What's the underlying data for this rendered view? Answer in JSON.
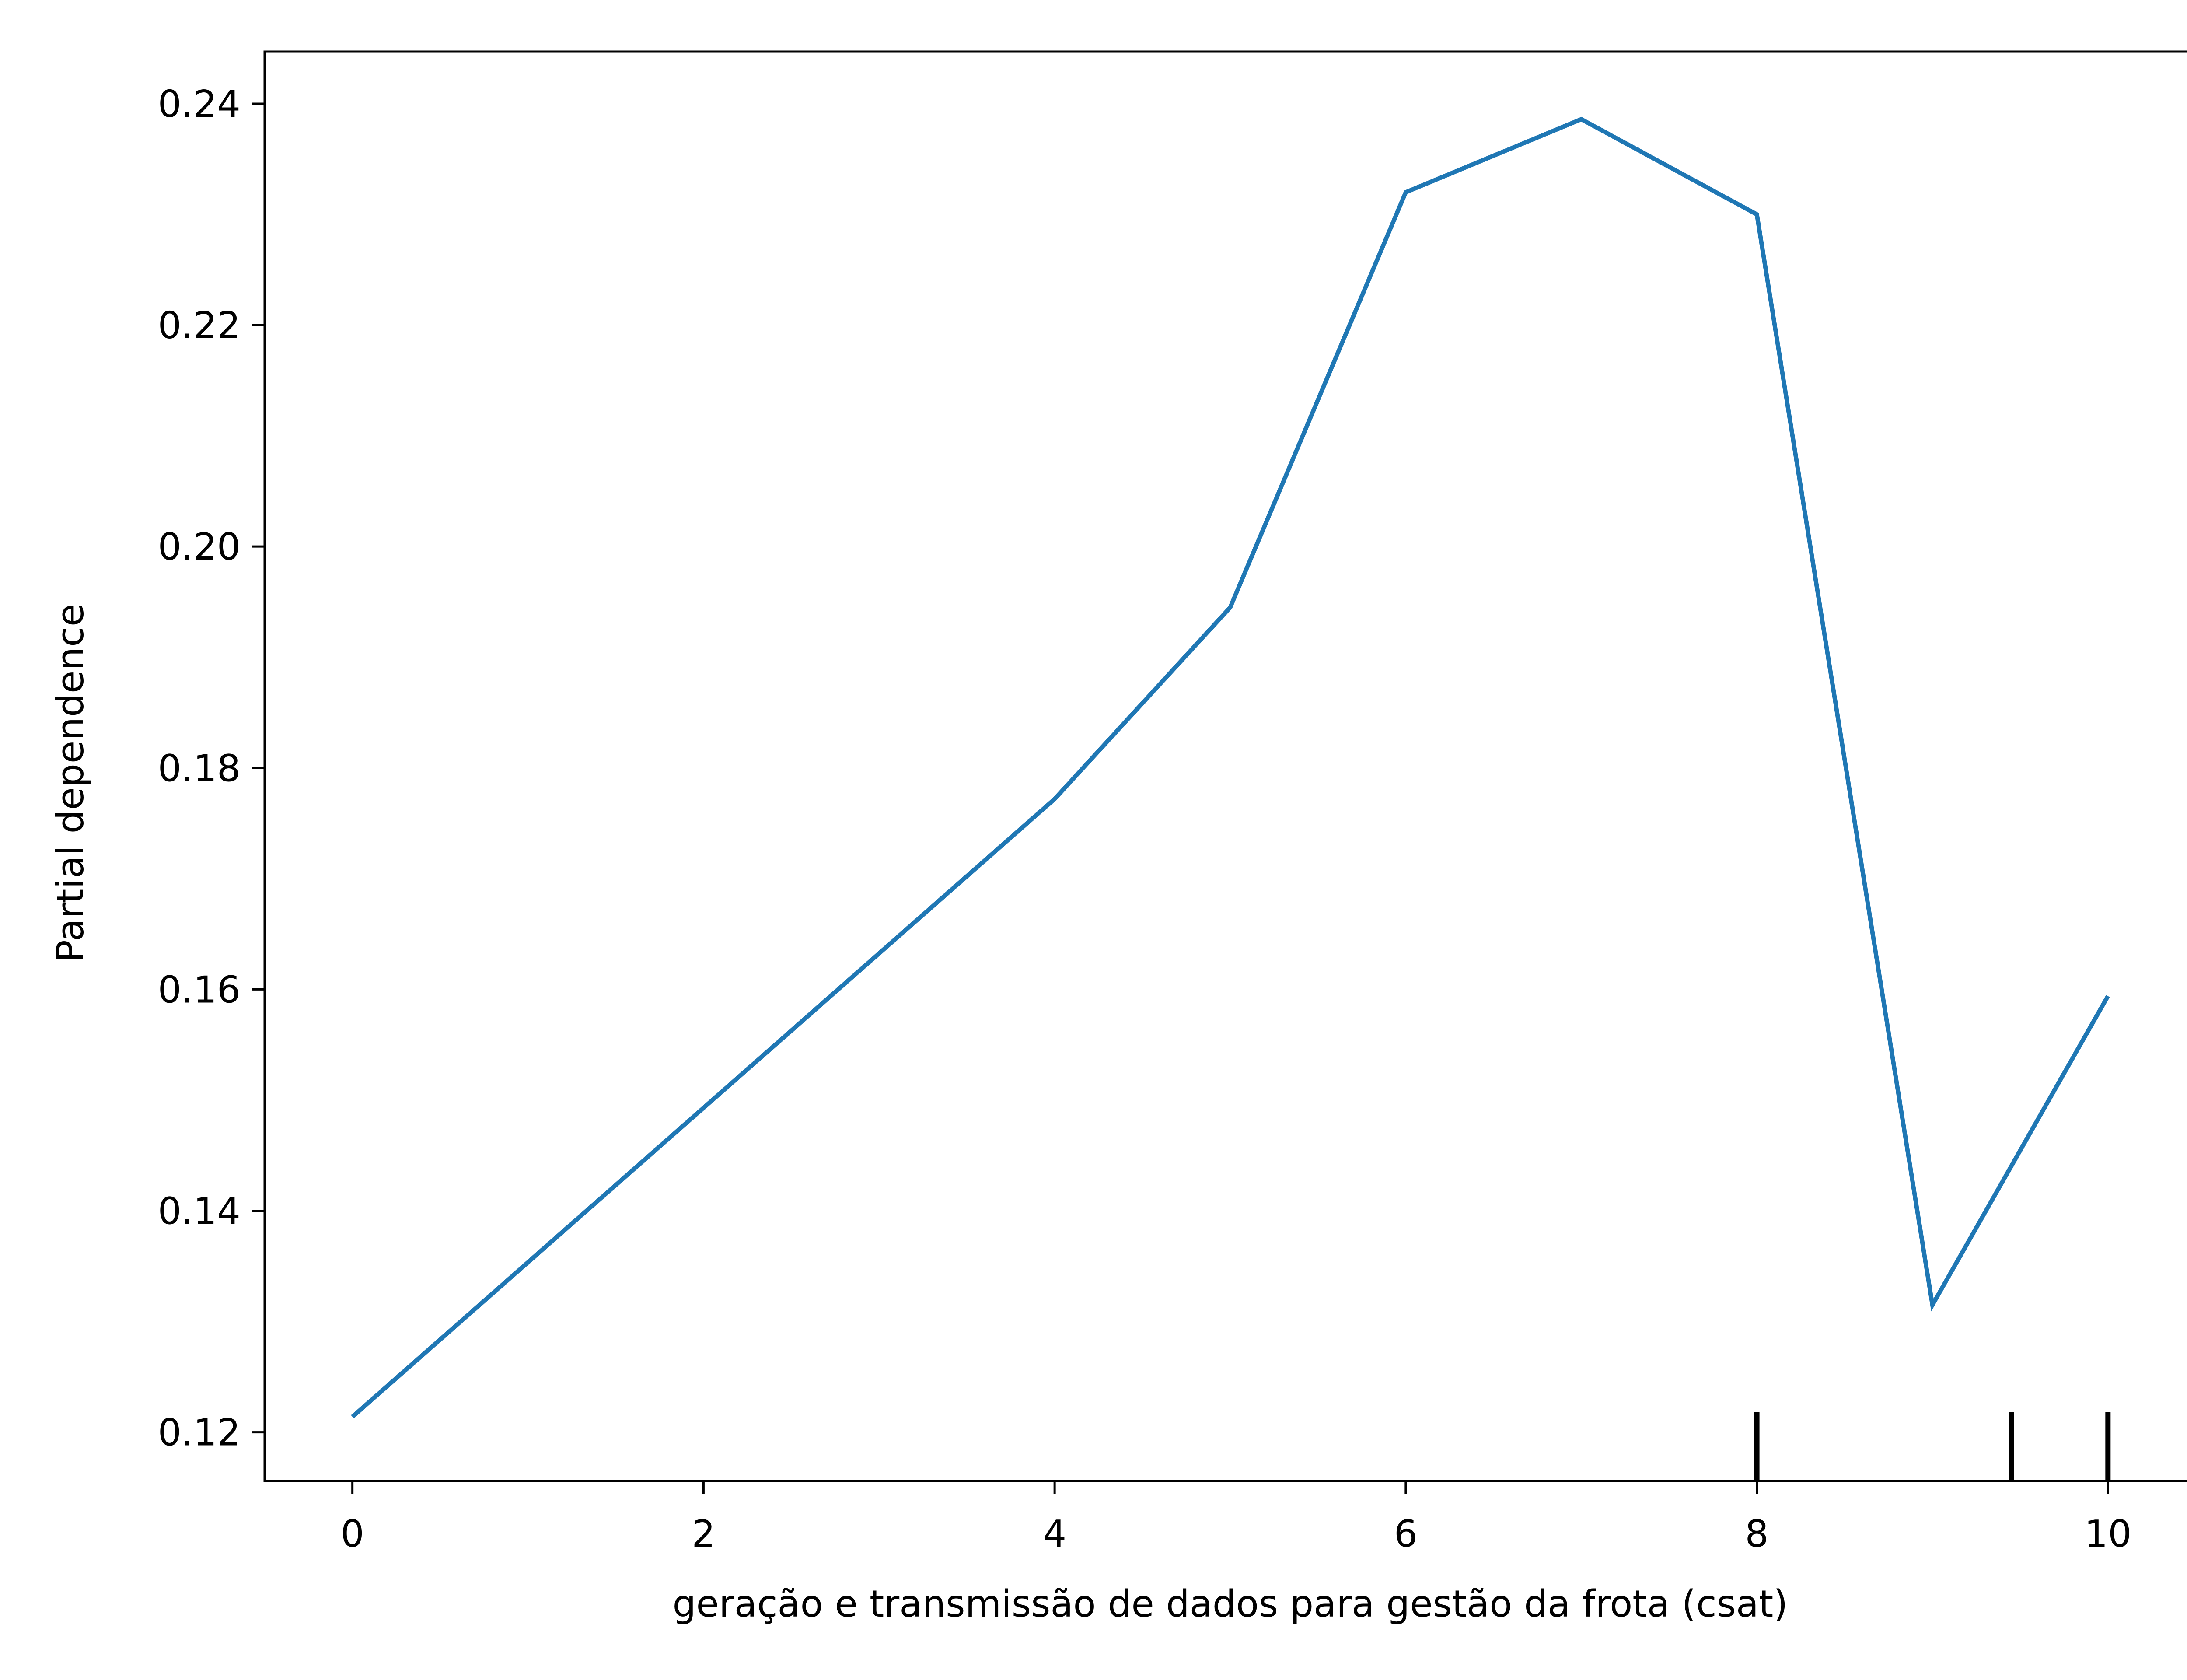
{
  "chart_data": {
    "type": "line",
    "xlabel": "geração e transmissão de dados para gestão da frota (csat)",
    "ylabel": "Partial dependence",
    "xlim": [
      -0.5,
      10.5
    ],
    "ylim": [
      0.1156,
      0.2447
    ],
    "x_ticks": [
      0,
      2,
      4,
      6,
      8,
      10
    ],
    "y_ticks": [
      0.12,
      0.14,
      0.16,
      0.18,
      0.2,
      0.22,
      0.24
    ],
    "x_tick_labels": [
      "0",
      "2",
      "4",
      "6",
      "8",
      "10"
    ],
    "y_tick_labels": [
      "0.12",
      "0.14",
      "0.16",
      "0.18",
      "0.20",
      "0.22",
      "0.24"
    ],
    "series": [
      {
        "color": "#1f77b4",
        "x": [
          0,
          4,
          5,
          6,
          7,
          8,
          9,
          10
        ],
        "y": [
          0.1214,
          0.1772,
          0.1945,
          0.232,
          0.2386,
          0.23,
          0.1315,
          0.1594
        ]
      }
    ],
    "rug": {
      "color": "#000000",
      "x": [
        8,
        9.45,
        10
      ]
    },
    "grid": false
  }
}
